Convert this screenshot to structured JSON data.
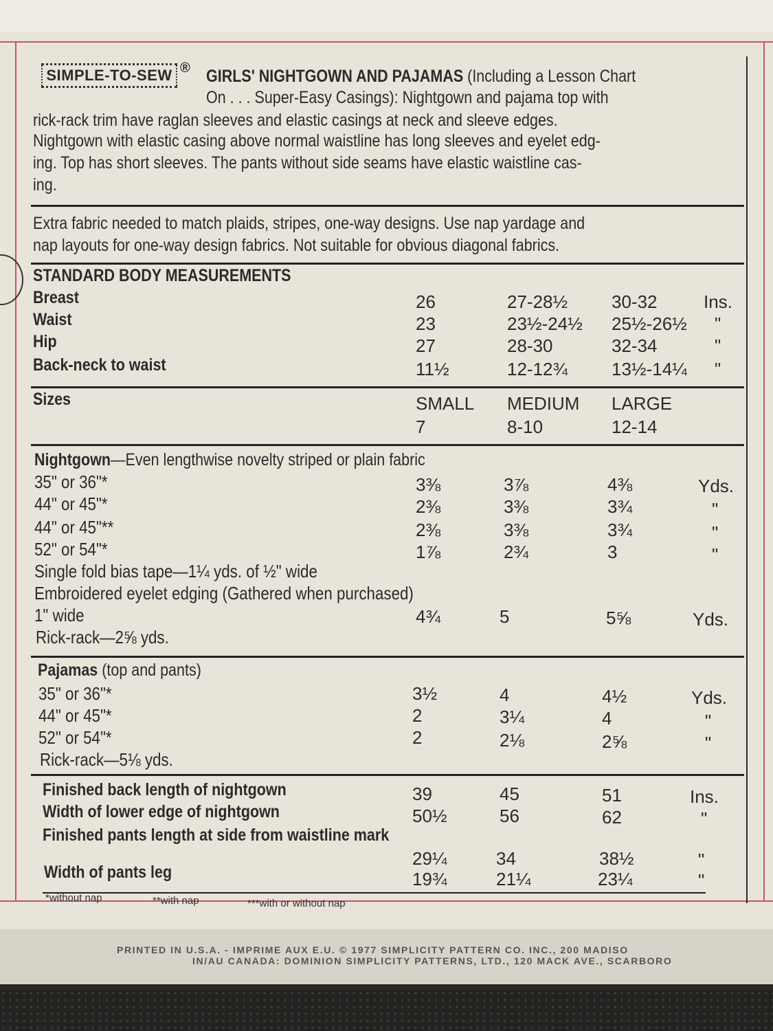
{
  "header": {
    "logo": "SIMPLE-TO-SEW",
    "registered": "®",
    "title": "GIRLS' NIGHTGOWN AND PAJAMAS",
    "line1_rest": " (Including a Lesson Chart",
    "lines": [
      "On . . . Super-Easy Casings): Nightgown and pajama top with",
      "rick-rack trim have raglan sleeves and elastic casings at neck and sleeve edges.",
      "Nightgown with elastic casing above normal waistline has long sleeves and eyelet edg-",
      "ing. Top has short sleeves. The pants without side seams have elastic waistline cas-",
      "ing."
    ]
  },
  "fabric_note": [
    "Extra fabric needed to match plaids, stripes, one-way designs. Use nap yardage and",
    "nap layouts for one-way design fabrics. Not suitable for obvious diagonal fabrics."
  ],
  "body_measurements": {
    "heading": "STANDARD BODY MEASUREMENTS",
    "rows": [
      {
        "label": "Breast",
        "v": [
          "26",
          "27-28½",
          "30-32"
        ],
        "unit": "Ins."
      },
      {
        "label": "Waist",
        "v": [
          "23",
          "23½-24½",
          "25½-26½"
        ],
        "unit": "\""
      },
      {
        "label": "Hip",
        "v": [
          "27",
          "28-30",
          "32-34"
        ],
        "unit": "\""
      },
      {
        "label": "Back-neck to waist",
        "v": [
          "11½",
          "12-12¾",
          "13½-14¼"
        ],
        "unit": "\""
      }
    ]
  },
  "sizes": {
    "heading": "Sizes",
    "names": [
      "SMALL",
      "MEDIUM",
      "LARGE"
    ],
    "numbers": [
      "7",
      "8-10",
      "12-14"
    ]
  },
  "nightgown": {
    "heading": "Nightgown",
    "heading_rest": "—Even lengthwise novelty striped or plain fabric",
    "rows": [
      {
        "label": "35\" or 36\"*",
        "v": [
          "3⅜",
          "3⅞",
          "4⅜"
        ],
        "unit": "Yds."
      },
      {
        "label": "44\" or 45\"*",
        "v": [
          "2⅜",
          "3⅜",
          "3¾"
        ],
        "unit": "\""
      },
      {
        "label": "44\" or 45\"**",
        "v": [
          "2⅜",
          "3⅜",
          "3¾"
        ],
        "unit": "\""
      },
      {
        "label": "52\" or 54\"*",
        "v": [
          "1⅞",
          "2¾",
          "3"
        ],
        "unit": "\""
      }
    ],
    "bias_tape": "Single fold bias tape—1¼ yds. of ½\" wide",
    "eyelet": "Embroidered eyelet edging (Gathered when purchased)",
    "eyelet_row": {
      "label": "1\" wide",
      "v": [
        "4¾",
        "5",
        "5⅝"
      ],
      "unit": "Yds."
    },
    "rickrack": "Rick-rack—2⅝ yds."
  },
  "pajamas": {
    "heading": "Pajamas",
    "heading_rest": " (top and pants)",
    "rows": [
      {
        "label": "35\" or 36\"*",
        "v": [
          "3½",
          "4",
          "4½"
        ],
        "unit": "Yds."
      },
      {
        "label": "44\" or 45\"*",
        "v": [
          "2",
          "3¼",
          "4"
        ],
        "unit": "\""
      },
      {
        "label": "52\" or 54\"*",
        "v": [
          "2",
          "2⅛",
          "2⅝"
        ],
        "unit": "\""
      }
    ],
    "rickrack": "Rick-rack—5⅛ yds."
  },
  "finished": {
    "rows": [
      {
        "label": "Finished back length of nightgown",
        "v": [
          "39",
          "45",
          "51"
        ],
        "unit": "Ins."
      },
      {
        "label": "Width of lower edge of nightgown",
        "v": [
          "50½",
          "56",
          "62"
        ],
        "unit": "\""
      }
    ],
    "pants_label": "Finished pants length at side from waistline mark",
    "pants_row": {
      "v": [
        "29¼",
        "34",
        "38½"
      ],
      "unit": "\""
    },
    "leg_row": {
      "label": "Width of pants leg",
      "v": [
        "19¾",
        "21¼",
        "23¼"
      ],
      "unit": "\""
    }
  },
  "footnotes": [
    "*without nap",
    "**with nap",
    "***with or without nap"
  ],
  "printed": [
    "PRINTED IN U.S.A. - IMPRIME AUX E.U.   © 1977 SIMPLICITY PATTERN CO. INC., 200 MADISO",
    "IN/AU CANADA: DOMINION SIMPLICITY PATTERNS, LTD., 120 MACK AVE., SCARBORO"
  ],
  "colors": {
    "paper": "#e9e4da",
    "border": "#c2566a",
    "ink": "#2b2b2b"
  }
}
